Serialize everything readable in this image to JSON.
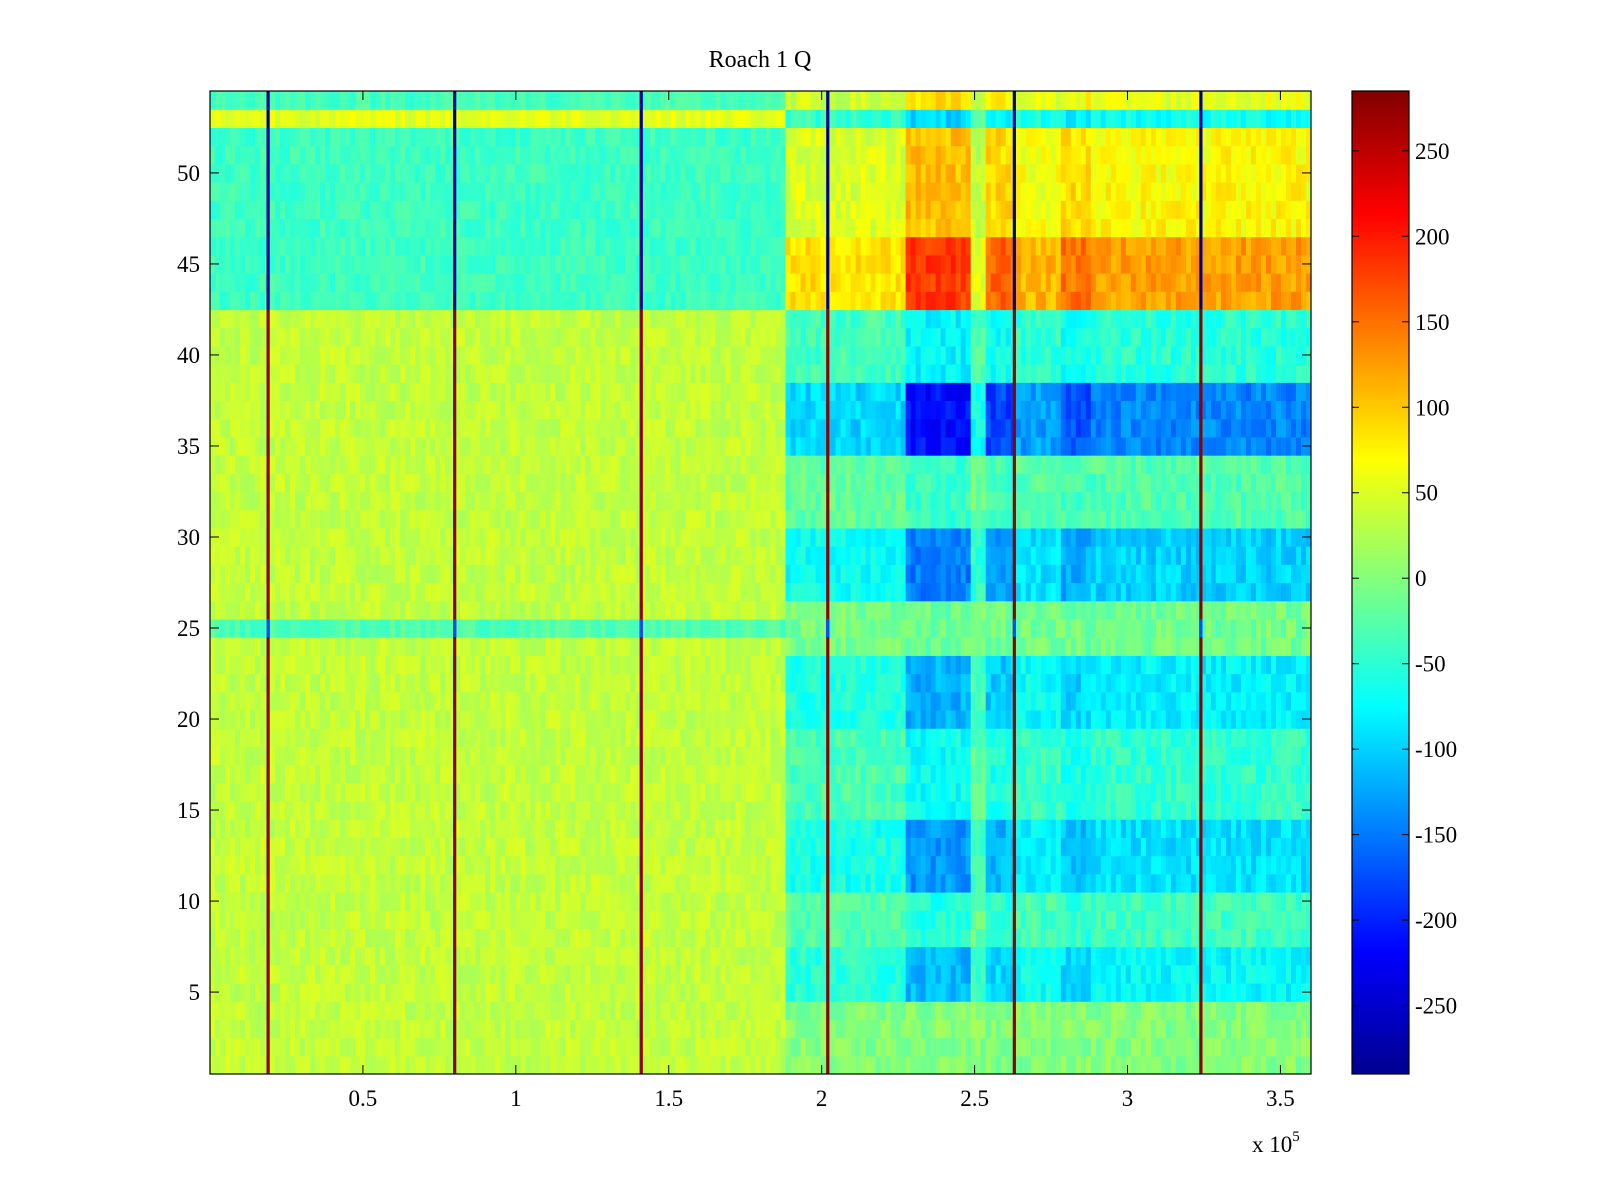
{
  "chart_data": {
    "type": "heatmap",
    "title": "Roach 1 Q",
    "xlabel": "",
    "ylabel": "",
    "x_multiplier_label": "x 10",
    "x_multiplier_exponent": "5",
    "xlim": [
      0,
      3.6
    ],
    "ylim": [
      0.5,
      54.5
    ],
    "x_ticks": [
      0.5,
      1,
      1.5,
      2,
      2.5,
      3,
      3.5
    ],
    "x_tick_labels": [
      "0.5",
      "1",
      "1.5",
      "2",
      "2.5",
      "3",
      "3.5"
    ],
    "y_ticks": [
      5,
      10,
      15,
      20,
      25,
      30,
      35,
      40,
      45,
      50
    ],
    "y_tick_labels": [
      "5",
      "10",
      "15",
      "20",
      "25",
      "30",
      "35",
      "40",
      "45",
      "50"
    ],
    "rows": 54,
    "colormap": "jet",
    "colorbar": {
      "range": [
        -290,
        285
      ],
      "ticks": [
        250,
        200,
        150,
        100,
        50,
        0,
        -50,
        -100,
        -150,
        -200,
        -250
      ],
      "tick_labels": [
        "250",
        "200",
        "150",
        "100",
        "50",
        "0",
        "-50",
        "-100",
        "-150",
        "-200",
        "-250"
      ]
    },
    "segment_boundaries_x": [
      0,
      1.88,
      2.28,
      2.49,
      2.78,
      2.88,
      3.6
    ],
    "calibration_lines_x": [
      0.19,
      0.8,
      1.41,
      2.02,
      2.63,
      3.24
    ],
    "row_profiles": {
      "note": "approximate mean value (colorbar units) per row group for each x segment",
      "segments": [
        {
          "x_range": [
            0,
            1.88
          ],
          "rows_1_24": 35,
          "row_25": -30,
          "rows_26_42": 35,
          "rows_43_52": -40,
          "row_53": 55,
          "row_54": -35
        },
        {
          "x_range": [
            1.88,
            3.6
          ],
          "rows_1_4": 0,
          "rows_5_7": -80,
          "rows_11_14": -95,
          "rows_20_23": -85,
          "rows_27_30": -105,
          "rows_35_38": -150,
          "rows_43_46": 130,
          "rows_47_52": 75
        }
      ]
    }
  }
}
